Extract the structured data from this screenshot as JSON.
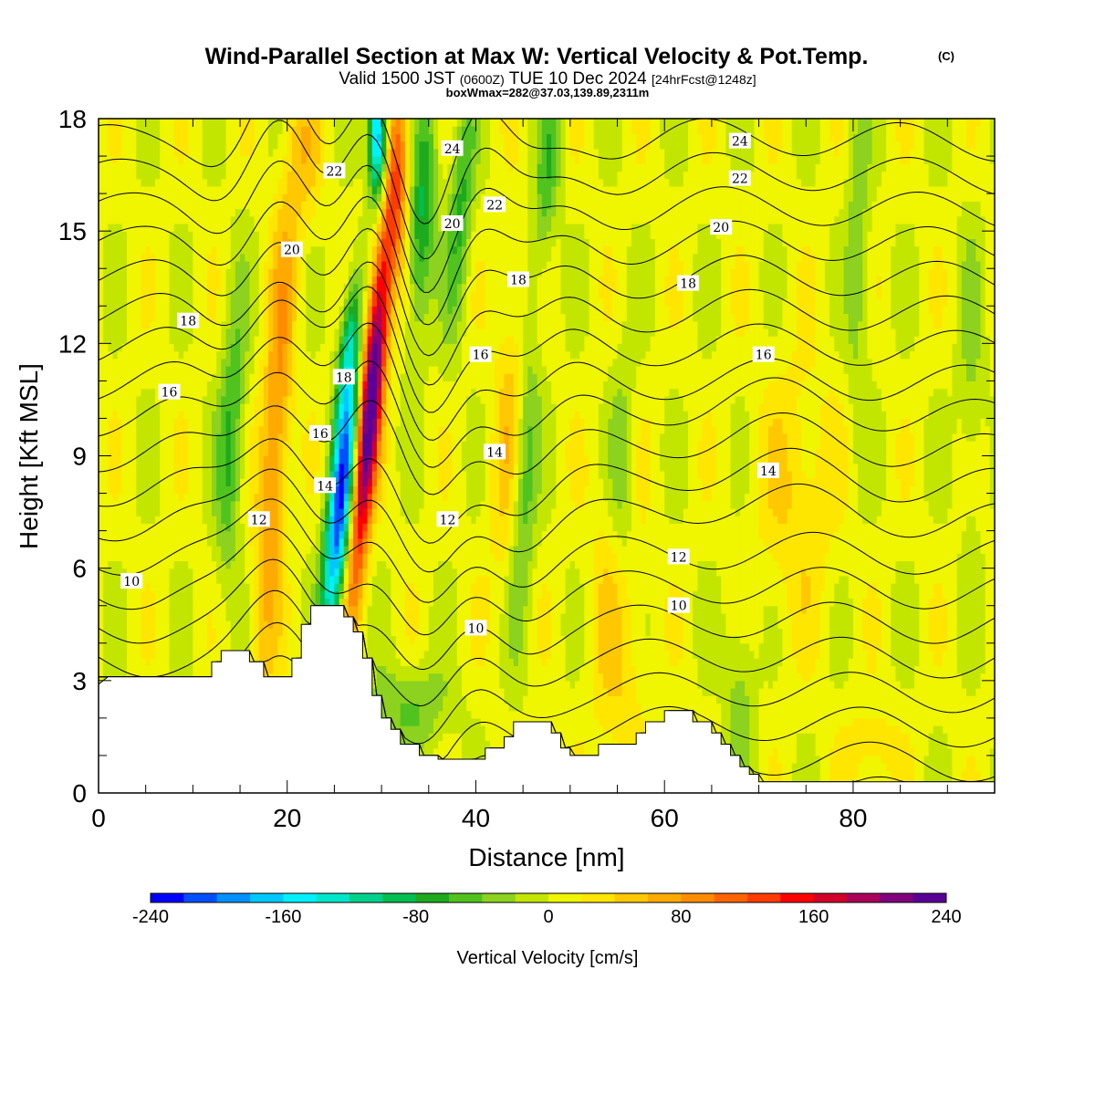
{
  "title": {
    "main": "Wind-Parallel Section at Max W: Vertical Velocity & Pot.Temp.",
    "copyright": "(C)",
    "valid_prefix": "Valid 1500 JST",
    "valid_utc": "(0600Z)",
    "valid_date": "TUE 10 Dec 2024",
    "forecast": "[24hrFcst@1248z]",
    "boxinfo": "boxWmax=282@37.03,139.89,2311m"
  },
  "chart_data": {
    "type": "heatmap",
    "xlabel": "Distance [nm]",
    "ylabel": "Height [Kft MSL]",
    "xlim": [
      0,
      95
    ],
    "ylim": [
      0,
      18
    ],
    "xticks": [
      0,
      20,
      40,
      60,
      80
    ],
    "yticks": [
      0,
      3,
      6,
      9,
      12,
      15,
      18
    ],
    "colorbar": {
      "label": "Vertical Velocity [cm/s]",
      "range": [
        -240,
        240
      ],
      "ticks": [
        -240,
        -160,
        -80,
        0,
        80,
        160,
        240
      ],
      "colors": [
        "#0000ff",
        "#0050ff",
        "#0090ff",
        "#00c8ff",
        "#00f0ff",
        "#00e6c8",
        "#00d28c",
        "#00be50",
        "#1eaa1e",
        "#50c31e",
        "#8cd21e",
        "#c3e600",
        "#f0f500",
        "#ffe600",
        "#ffc800",
        "#ffaa00",
        "#ff8c00",
        "#ff6400",
        "#ff3c00",
        "#ff0000",
        "#d20028",
        "#aa005a",
        "#82007d",
        "#5a0096"
      ]
    },
    "terrain": [
      [
        0,
        2.9
      ],
      [
        1,
        3.1
      ],
      [
        12,
        3.1
      ],
      [
        12,
        3.5
      ],
      [
        13,
        3.5
      ],
      [
        13,
        3.8
      ],
      [
        16,
        3.8
      ],
      [
        16,
        3.5
      ],
      [
        17.5,
        3.5
      ],
      [
        17.5,
        3.1
      ],
      [
        20.5,
        3.1
      ],
      [
        20.5,
        3.6
      ],
      [
        21.5,
        3.6
      ],
      [
        21.5,
        4.5
      ],
      [
        22.5,
        4.5
      ],
      [
        22.5,
        5.0
      ],
      [
        26,
        5.0
      ],
      [
        26,
        4.7
      ],
      [
        27,
        4.7
      ],
      [
        27,
        4.3
      ],
      [
        28,
        4.3
      ],
      [
        28,
        3.6
      ],
      [
        29,
        3.6
      ],
      [
        29,
        2.6
      ],
      [
        30,
        2.6
      ],
      [
        30,
        2.0
      ],
      [
        31,
        2.0
      ],
      [
        31,
        1.7
      ],
      [
        32,
        1.7
      ],
      [
        32,
        1.3
      ],
      [
        34,
        1.3
      ],
      [
        34,
        1.0
      ],
      [
        36,
        1.0
      ],
      [
        36,
        0.9
      ],
      [
        41,
        0.9
      ],
      [
        41,
        1.2
      ],
      [
        43,
        1.2
      ],
      [
        43,
        1.5
      ],
      [
        44,
        1.5
      ],
      [
        44,
        1.9
      ],
      [
        48,
        1.9
      ],
      [
        48,
        1.6
      ],
      [
        49,
        1.6
      ],
      [
        49,
        1.2
      ],
      [
        50,
        1.2
      ],
      [
        50,
        1.0
      ],
      [
        53,
        1.0
      ],
      [
        53,
        1.3
      ],
      [
        57,
        1.3
      ],
      [
        57,
        1.6
      ],
      [
        58,
        1.6
      ],
      [
        58,
        1.9
      ],
      [
        60,
        1.9
      ],
      [
        60,
        2.2
      ],
      [
        63,
        2.2
      ],
      [
        63,
        1.9
      ],
      [
        65,
        1.9
      ],
      [
        65,
        1.6
      ],
      [
        66,
        1.6
      ],
      [
        66,
        1.3
      ],
      [
        67,
        1.3
      ],
      [
        67,
        1.0
      ],
      [
        68,
        1.0
      ],
      [
        68,
        0.7
      ],
      [
        69,
        0.7
      ],
      [
        69,
        0.5
      ],
      [
        70,
        0.5
      ],
      [
        70,
        0.3
      ],
      [
        95,
        0.3
      ]
    ],
    "theta_contours": [
      {
        "level": 10,
        "labels": [
          {
            "x": 3.5,
            "y": 5.65
          },
          {
            "x": 40,
            "y": 4.4
          },
          {
            "x": 61.5,
            "y": 5.0
          }
        ]
      },
      {
        "level": 12,
        "labels": [
          {
            "x": 17,
            "y": 7.3
          },
          {
            "x": 37,
            "y": 7.3
          },
          {
            "x": 61.5,
            "y": 6.3
          }
        ]
      },
      {
        "level": 14,
        "labels": [
          {
            "x": 24,
            "y": 8.2
          },
          {
            "x": 42,
            "y": 9.1
          },
          {
            "x": 71,
            "y": 8.6
          }
        ]
      },
      {
        "level": 16,
        "labels": [
          {
            "x": 7.5,
            "y": 10.7
          },
          {
            "x": 23.5,
            "y": 9.6
          },
          {
            "x": 40.5,
            "y": 11.7
          },
          {
            "x": 70.5,
            "y": 11.7
          }
        ]
      },
      {
        "level": 18,
        "labels": [
          {
            "x": 9.5,
            "y": 12.6
          },
          {
            "x": 26,
            "y": 11.1
          },
          {
            "x": 44.5,
            "y": 13.7
          },
          {
            "x": 62.5,
            "y": 13.6
          }
        ]
      },
      {
        "level": 20,
        "labels": [
          {
            "x": 20.5,
            "y": 14.5
          },
          {
            "x": 37.5,
            "y": 15.2
          },
          {
            "x": 66,
            "y": 15.1
          }
        ]
      },
      {
        "level": 22,
        "labels": [
          {
            "x": 25,
            "y": 16.6
          },
          {
            "x": 42,
            "y": 15.7
          },
          {
            "x": 68,
            "y": 16.4
          }
        ]
      },
      {
        "level": 24,
        "labels": [
          {
            "x": 37.5,
            "y": 17.2
          },
          {
            "x": 68,
            "y": 17.4
          }
        ]
      }
    ]
  }
}
